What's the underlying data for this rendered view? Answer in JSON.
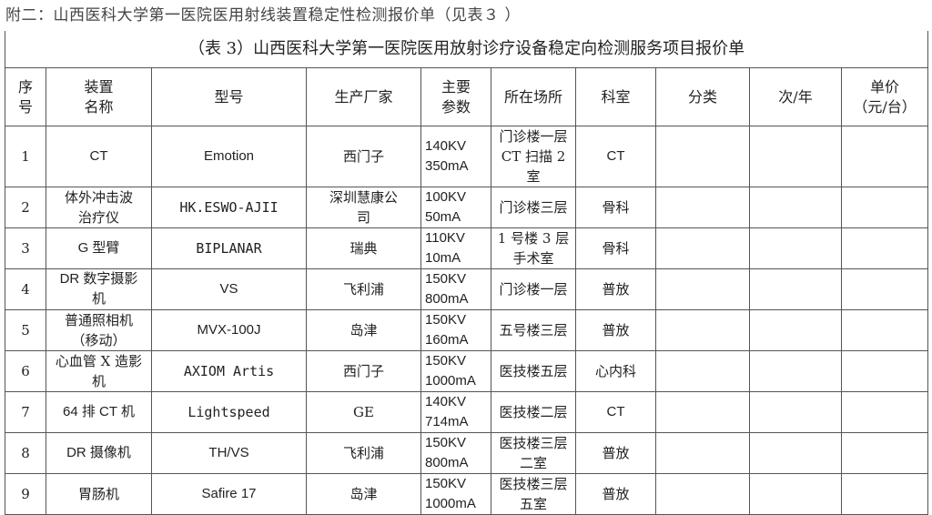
{
  "caption": "附二：山西医科大学第一医院医用射线装置稳定性检测报价单（见表３ ）",
  "table": {
    "title": "（表 3）山西医科大学第一医院医用放射诊疗设备稳定向检测服务项目报价单",
    "headers": [
      "序\n号",
      "装置\n名称",
      "型号",
      "生产厂家",
      "主要\n参数",
      "所在场所",
      "科室",
      "分类",
      "次/年",
      "单价\n（元/台）"
    ],
    "rows": [
      {
        "no": "1",
        "name": "CT",
        "model": "Emotion",
        "maker": "西门子",
        "kv": "140KV",
        "ma": "350mA",
        "location": "门诊楼一层\nCT 扫描 2 室",
        "dept": "CT",
        "category": "",
        "times": "",
        "price": ""
      },
      {
        "no": "2",
        "name": "体外冲击波\n治疗仪",
        "model": "HK.ESWO-AJII",
        "maker": "深圳慧康公\n司",
        "kv": "100KV",
        "ma": "50mA",
        "location": "门诊楼三层",
        "dept": "骨科",
        "category": "",
        "times": "",
        "price": ""
      },
      {
        "no": "3",
        "name": "G 型臂",
        "model": "BIPLANAR",
        "maker": "瑞典",
        "kv": "110KV",
        "ma": "10mA",
        "location": "1 号楼 3 层\n手术室",
        "dept": "骨科",
        "category": "",
        "times": "",
        "price": ""
      },
      {
        "no": "4",
        "name": "DR 数字摄影\n机",
        "model": "VS",
        "maker": "飞利浦",
        "kv": "150KV",
        "ma": "800mA",
        "location": "门诊楼一层",
        "dept": "普放",
        "category": "",
        "times": "",
        "price": ""
      },
      {
        "no": "5",
        "name": "普通照相机\n（移动）",
        "model": "MVX-100J",
        "maker": "岛津",
        "kv": "150KV",
        "ma": "160mA",
        "location": "五号楼三层",
        "dept": "普放",
        "category": "",
        "times": "",
        "price": ""
      },
      {
        "no": "6",
        "name": "心血管 X 造影\n机",
        "model": "AXIOM Artis",
        "maker": "西门子",
        "kv": "150KV",
        "ma": "1000mA",
        "location": "医技楼五层",
        "dept": "心内科",
        "category": "",
        "times": "",
        "price": ""
      },
      {
        "no": "7",
        "name": "64 排 CT 机",
        "model": "Lightspeed",
        "maker": "GE",
        "kv": "140KV",
        "ma": "714mA",
        "location": "医技楼二层",
        "dept": "CT",
        "category": "",
        "times": "",
        "price": ""
      },
      {
        "no": "8",
        "name": "DR 摄像机",
        "model": "TH/VS",
        "maker": "飞利浦",
        "kv": "150KV",
        "ma": "800mA",
        "location": "医技楼三层\n二室",
        "dept": "普放",
        "category": "",
        "times": "",
        "price": ""
      },
      {
        "no": "9",
        "name": "胃肠机",
        "model": "Safire 17",
        "maker": "岛津",
        "kv": "150KV",
        "ma": "1000mA",
        "location": "医技楼三层\n五室",
        "dept": "普放",
        "category": "",
        "times": "",
        "price": ""
      }
    ]
  }
}
